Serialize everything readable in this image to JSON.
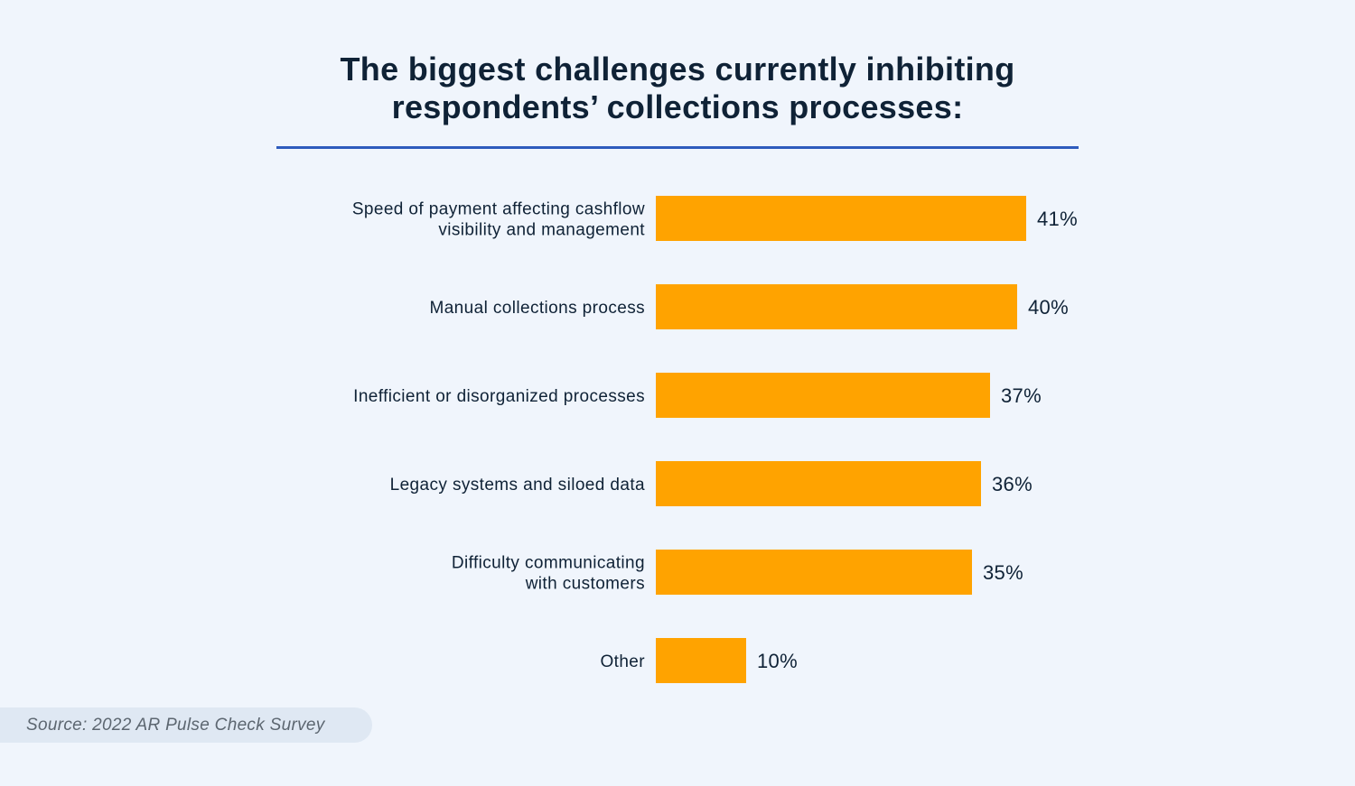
{
  "title_line1": "The biggest challenges currently inhibiting",
  "title_line2": "respondents’ collections processes:",
  "source": "Source: 2022 AR Pulse Check Survey",
  "colors": {
    "bar": "#ffa300",
    "rule": "#2e5bbd",
    "background": "#f0f5fc"
  },
  "chart_data": {
    "type": "bar",
    "orientation": "horizontal",
    "title": "The biggest challenges currently inhibiting respondents’ collections processes:",
    "categories": [
      [
        "Speed of payment affecting cashflow",
        "visibility and management"
      ],
      [
        "Manual collections process"
      ],
      [
        "Inefficient or disorganized processes"
      ],
      [
        "Legacy systems and siloed data"
      ],
      [
        "Difficulty communicating",
        "with customers"
      ],
      [
        "Other"
      ]
    ],
    "values": [
      41,
      40,
      37,
      36,
      35,
      10
    ],
    "value_labels": [
      "41%",
      "40%",
      "37%",
      "36%",
      "35%",
      "10%"
    ],
    "unit": "%",
    "xlim": [
      0,
      100
    ],
    "grid": false,
    "legend": "none"
  }
}
